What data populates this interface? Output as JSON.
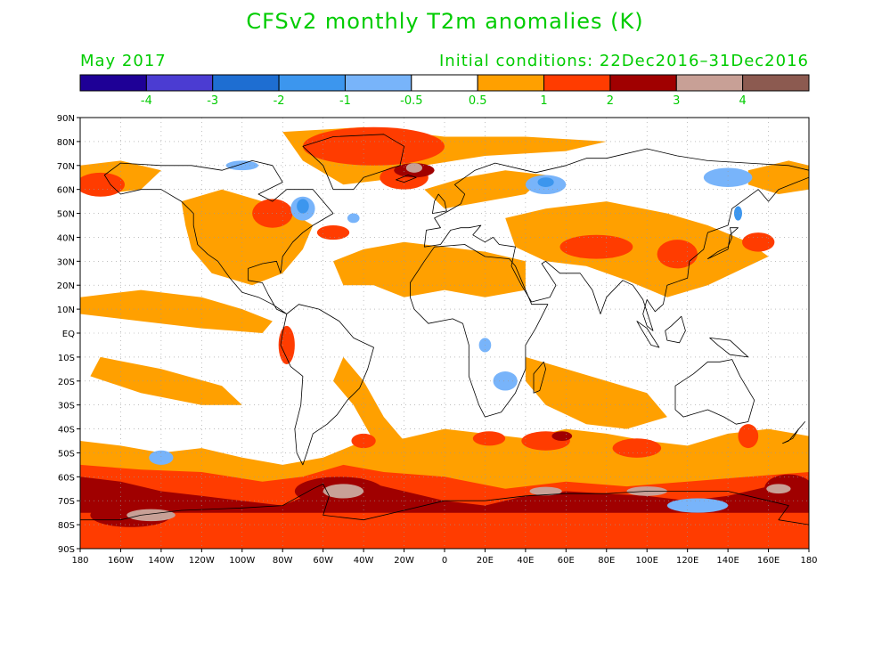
{
  "title": "CFSv2 monthly T2m anomalies (K)",
  "valid_month": "May 2017",
  "initial_conditions": "Initial conditions: 22Dec2016–31Dec2016",
  "legend": {
    "colors": [
      "#1e0096",
      "#4b3cd2",
      "#1e6ed2",
      "#3c96ee",
      "#78b4fa",
      "#ffffff",
      "#ffa000",
      "#ff3c00",
      "#a00000",
      "#c8a096",
      "#8c5a50"
    ],
    "labels": [
      "-4",
      "-3",
      "-2",
      "-1",
      "-0.5",
      "0.5",
      "1",
      "2",
      "3",
      "4"
    ]
  },
  "map": {
    "lat_labels": [
      "90N",
      "80N",
      "70N",
      "60N",
      "50N",
      "40N",
      "30N",
      "20N",
      "10N",
      "EQ",
      "10S",
      "20S",
      "30S",
      "40S",
      "50S",
      "60S",
      "70S",
      "80S",
      "90S"
    ],
    "lon_labels": [
      "180",
      "160W",
      "140W",
      "120W",
      "100W",
      "80W",
      "60W",
      "40W",
      "20W",
      "0",
      "20E",
      "40E",
      "60E",
      "80E",
      "100E",
      "120E",
      "140E",
      "160E",
      "180"
    ],
    "colors": {
      "warm1": "#ffa000",
      "warm2": "#ff3c00",
      "warm3": "#a00000",
      "warm4": "#c8a096",
      "warm5": "#8c5a50",
      "cool1": "#78b4fa",
      "cool2": "#3c96ee",
      "grid": "#999999",
      "coast": "#000000"
    }
  }
}
